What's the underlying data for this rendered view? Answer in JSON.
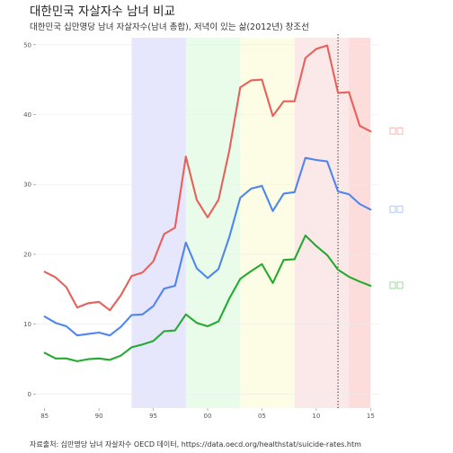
{
  "chart_data": {
    "type": "line",
    "title": "대한민국 자살자수 남녀 비교",
    "subtitle": "대한민국 십만명당 남녀 자살자수(남녀 총합), 저녁이 있는 삶(2012년) 창조선",
    "caption": "자료출처: 십만명당 남녀 자살자수 OECD 데이터, https://data.oecd.org/healthstat/suicide-rates.htm",
    "xlabel": "",
    "ylabel": "",
    "xlim": [
      1984.2,
      2015.8
    ],
    "ylim": [
      -2,
      51
    ],
    "x_ticks": [
      1985,
      1990,
      1995,
      2000,
      2005,
      2010,
      2015
    ],
    "x_tick_labels": [
      "85",
      "90",
      "95",
      "00",
      "05",
      "10",
      "15"
    ],
    "y_ticks": [
      0,
      10,
      20,
      30,
      40,
      50
    ],
    "y_tick_labels": [
      "0",
      "10",
      "20",
      "30",
      "40",
      "50"
    ],
    "vline": {
      "x": 2012,
      "style": "dotted",
      "color": "#000000"
    },
    "bands": [
      {
        "from": 1993,
        "to": 1998,
        "color": "#e6e6fc"
      },
      {
        "from": 1998,
        "to": 2003,
        "color": "#e9fce9"
      },
      {
        "from": 2003,
        "to": 2008,
        "color": "#fdfde6"
      },
      {
        "from": 2008,
        "to": 2013,
        "color": "#fbe9e9"
      },
      {
        "from": 2013,
        "to": 2015,
        "color": "#fddcdc"
      }
    ],
    "x": [
      1985,
      1986,
      1987,
      1988,
      1989,
      1990,
      1991,
      1992,
      1993,
      1994,
      1995,
      1996,
      1997,
      1998,
      1999,
      2000,
      2001,
      2002,
      2003,
      2004,
      2005,
      2006,
      2007,
      2008,
      2009,
      2010,
      2011,
      2012,
      2013,
      2014,
      2015
    ],
    "series": [
      {
        "name": "",
        "color": "#e8605a",
        "values": [
          17.5,
          16.7,
          15.3,
          12.4,
          13.0,
          13.2,
          12.0,
          14.1,
          16.9,
          17.4,
          19.0,
          22.9,
          23.8,
          34.0,
          27.8,
          25.3,
          27.8,
          34.9,
          43.9,
          44.9,
          45.0,
          39.8,
          41.9,
          41.9,
          48.1,
          49.4,
          49.9,
          43.1,
          43.2,
          38.4,
          37.6
        ]
      },
      {
        "name": "",
        "color": "#4f86ee",
        "values": [
          11.1,
          10.2,
          9.7,
          8.4,
          8.6,
          8.8,
          8.4,
          9.6,
          11.3,
          11.4,
          12.6,
          15.1,
          15.5,
          21.7,
          18.0,
          16.6,
          17.9,
          22.5,
          28.1,
          29.4,
          29.8,
          26.2,
          28.7,
          28.9,
          33.8,
          33.5,
          33.3,
          29.0,
          28.6,
          27.2,
          26.4
        ]
      },
      {
        "name": "",
        "color": "#24ab2f",
        "values": [
          5.9,
          5.1,
          5.1,
          4.7,
          5.0,
          5.1,
          4.9,
          5.5,
          6.7,
          7.1,
          7.6,
          9.0,
          9.1,
          11.4,
          10.2,
          9.7,
          10.4,
          13.7,
          16.5,
          17.6,
          18.6,
          15.9,
          19.2,
          19.3,
          22.7,
          21.2,
          19.9,
          17.8,
          16.8,
          16.1,
          15.5
        ]
      }
    ]
  }
}
